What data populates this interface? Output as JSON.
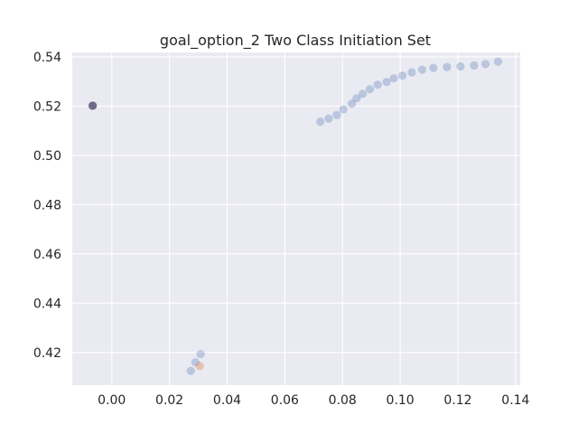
{
  "chart_data": {
    "type": "scatter",
    "title": "goal_option_2 Two Class Initiation Set",
    "xlabel": "",
    "ylabel": "",
    "xlim": [
      -0.0137,
      0.1416
    ],
    "ylim": [
      0.4067,
      0.5418
    ],
    "x_ticks": [
      0.0,
      0.02,
      0.04,
      0.06,
      0.08,
      0.1,
      0.12,
      0.14
    ],
    "x_tick_labels": [
      "0.00",
      "0.02",
      "0.04",
      "0.06",
      "0.08",
      "0.10",
      "0.12",
      "0.14"
    ],
    "y_ticks": [
      0.42,
      0.44,
      0.46,
      0.48,
      0.5,
      0.52,
      0.54
    ],
    "y_tick_labels": [
      "0.42",
      "0.44",
      "0.46",
      "0.48",
      "0.50",
      "0.52",
      "0.54"
    ],
    "grid": true,
    "background": "#eaeaf2",
    "grid_color": "#ffffff",
    "series": [
      {
        "color": "#4c72b0",
        "alpha": 0.3,
        "points": [
          [
            0.0723,
            0.5137
          ],
          [
            0.0752,
            0.5149
          ],
          [
            0.078,
            0.5164
          ],
          [
            0.0803,
            0.5187
          ],
          [
            0.0832,
            0.521
          ],
          [
            0.0849,
            0.5232
          ],
          [
            0.087,
            0.525
          ],
          [
            0.0895,
            0.5269
          ],
          [
            0.0922,
            0.5287
          ],
          [
            0.0953,
            0.5298
          ],
          [
            0.0978,
            0.5313
          ],
          [
            0.1008,
            0.5324
          ],
          [
            0.104,
            0.5337
          ],
          [
            0.1076,
            0.5348
          ],
          [
            0.1115,
            0.5355
          ],
          [
            0.1162,
            0.5359
          ],
          [
            0.1209,
            0.5361
          ],
          [
            0.1256,
            0.5365
          ],
          [
            0.1296,
            0.5371
          ],
          [
            0.1339,
            0.5381
          ],
          [
            -0.0067,
            0.5201
          ],
          [
            0.0274,
            0.4125
          ],
          [
            0.029,
            0.416
          ],
          [
            0.0308,
            0.4193
          ]
        ]
      },
      {
        "color": "#dd8452",
        "alpha": 0.4,
        "points": [
          [
            0.0305,
            0.4145
          ]
        ]
      },
      {
        "color": "#5a4a66",
        "alpha": 0.75,
        "points": [
          [
            -0.0066,
            0.5202
          ]
        ]
      }
    ]
  }
}
